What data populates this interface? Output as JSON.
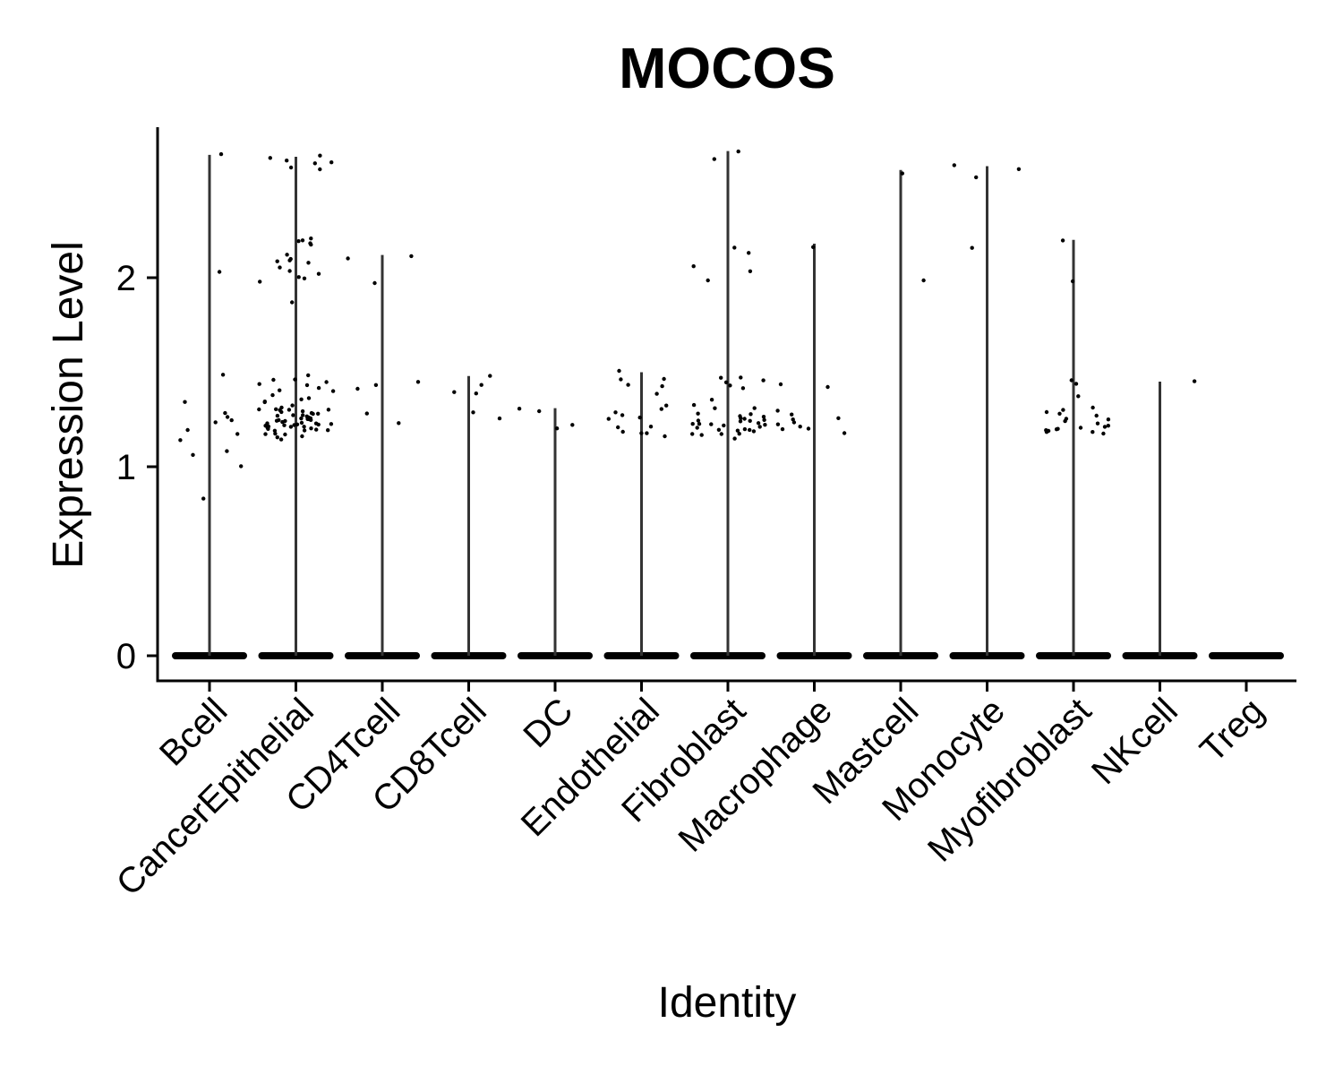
{
  "chart_data": {
    "type": "violin",
    "title": "MOCOS",
    "xlabel": "Identity",
    "ylabel": "Expression Level",
    "ylim": [
      -0.14,
      2.8
    ],
    "yticks": [
      0,
      1,
      2
    ],
    "grid": false,
    "legend": "none",
    "colors": {
      "points": "#000000",
      "violin": "#333333",
      "axis": "#000000"
    },
    "categories": [
      "Bcell",
      "CancerEpithelial",
      "CD4Tcell",
      "CD8Tcell",
      "DC",
      "Endothelial",
      "Fibroblast",
      "Macrophage",
      "Mastcell",
      "Monocyte",
      "Myofibroblast",
      "NKcell",
      "Treg"
    ],
    "series": [
      {
        "category": "Bcell",
        "max": 2.65,
        "zero_cells": true,
        "points": [
          2.65,
          2.04,
          1.49,
          1.35,
          1.29,
          1.26,
          1.24,
          1.23,
          1.2,
          1.18,
          1.14,
          1.08,
          1.06,
          1.01,
          0.83
        ]
      },
      {
        "category": "CancerEpithelial",
        "max": 2.64,
        "zero_cells": true,
        "points": [
          2.64,
          2.63,
          2.62,
          2.61,
          2.6,
          2.59,
          2.57,
          2.2,
          2.2,
          2.19,
          2.18,
          2.17,
          2.12,
          2.1,
          2.09,
          2.08,
          2.07,
          2.05,
          2.03,
          2.02,
          2.01,
          2.0,
          1.98,
          1.87,
          1.48,
          1.47,
          1.46,
          1.45,
          1.44,
          1.43,
          1.42,
          1.41,
          1.4,
          1.38,
          1.37,
          1.36,
          1.35,
          1.34,
          1.33,
          1.32,
          1.31,
          1.3,
          1.3,
          1.29,
          1.29,
          1.28,
          1.28,
          1.27,
          1.27,
          1.26,
          1.26,
          1.25,
          1.25,
          1.25,
          1.24,
          1.24,
          1.24,
          1.23,
          1.23,
          1.23,
          1.22,
          1.22,
          1.22,
          1.21,
          1.21,
          1.21,
          1.2,
          1.2,
          1.2,
          1.19,
          1.19,
          1.18,
          1.18,
          1.17,
          1.17,
          1.16,
          1.15,
          1.3,
          1.28,
          1.26,
          1.24,
          1.22,
          1.2,
          1.27,
          1.25,
          1.23,
          1.21,
          1.29,
          1.31,
          1.19
        ]
      },
      {
        "category": "CD4Tcell",
        "max": 2.12,
        "zero_cells": true,
        "points": [
          2.11,
          2.1,
          1.98,
          1.44,
          1.43,
          1.42,
          1.29,
          1.24
        ]
      },
      {
        "category": "CD8Tcell",
        "max": 1.48,
        "zero_cells": true,
        "points": [
          1.48,
          1.44,
          1.4,
          1.39,
          1.28,
          1.26
        ]
      },
      {
        "category": "DC",
        "max": 1.31,
        "zero_cells": true,
        "points": [
          1.31,
          1.3,
          1.23,
          1.21
        ]
      },
      {
        "category": "Endothelial",
        "max": 1.5,
        "zero_cells": true,
        "points": [
          1.5,
          1.47,
          1.46,
          1.44,
          1.43,
          1.38,
          1.33,
          1.3,
          1.28,
          1.27,
          1.26,
          1.25,
          1.22,
          1.2,
          1.19,
          1.18,
          1.17,
          1.16
        ]
      },
      {
        "category": "Fibroblast",
        "max": 2.67,
        "zero_cells": true,
        "points": [
          2.67,
          2.62,
          2.16,
          2.13,
          2.07,
          2.04,
          1.98,
          1.48,
          1.47,
          1.46,
          1.45,
          1.43,
          1.42,
          1.35,
          1.32,
          1.31,
          1.3,
          1.29,
          1.28,
          1.27,
          1.26,
          1.25,
          1.25,
          1.24,
          1.24,
          1.23,
          1.23,
          1.22,
          1.22,
          1.21,
          1.21,
          1.2,
          1.2,
          1.19,
          1.19,
          1.18,
          1.18,
          1.17,
          1.16,
          1.15,
          1.26,
          1.22,
          1.2,
          1.24,
          1.18
        ]
      },
      {
        "category": "Macrophage",
        "max": 2.18,
        "zero_cells": true,
        "points": [
          2.17,
          1.44,
          1.42,
          1.29,
          1.28,
          1.26,
          1.25,
          1.24,
          1.22,
          1.21,
          1.2,
          1.19,
          1.17
        ]
      },
      {
        "category": "Mastcell",
        "max": 2.57,
        "zero_cells": true,
        "points": [
          2.56,
          1.98
        ]
      },
      {
        "category": "Monocyte",
        "max": 2.59,
        "zero_cells": true,
        "points": [
          2.59,
          2.58,
          2.54,
          2.15
        ]
      },
      {
        "category": "Myofibroblast",
        "max": 2.2,
        "zero_cells": true,
        "points": [
          2.2,
          1.98,
          1.46,
          1.43,
          1.38,
          1.32,
          1.3,
          1.29,
          1.28,
          1.27,
          1.26,
          1.25,
          1.24,
          1.23,
          1.22,
          1.21,
          1.21,
          1.2,
          1.2,
          1.19,
          1.19,
          1.18,
          1.18,
          1.17
        ]
      },
      {
        "category": "NKcell",
        "max": 1.45,
        "zero_cells": true,
        "points": [
          1.45
        ]
      },
      {
        "category": "Treg",
        "max": 0,
        "zero_cells": true,
        "points": []
      }
    ]
  }
}
